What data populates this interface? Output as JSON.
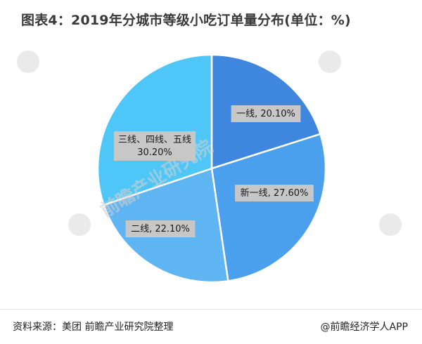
{
  "header": {
    "title": "图表4：2019年分城市等级小吃订单量分布(单位：%)"
  },
  "chart_data": {
    "type": "pie",
    "title": "图表4：2019年分城市等级小吃订单量分布(单位：%)",
    "unit": "%",
    "slices": [
      {
        "name": "一线",
        "value": 20.1,
        "label": "一线, 20.10%",
        "color": "#3f86de"
      },
      {
        "name": "新一线",
        "value": 27.6,
        "label": "新一线, 27.60%",
        "color": "#4aa0ec"
      },
      {
        "name": "二线",
        "value": 22.1,
        "label": "二线, 22.10%",
        "color": "#5fb4f2"
      },
      {
        "name": "三线、四线、五线",
        "value": 30.2,
        "label_lines": [
          "三线、四线、五线",
          "30.20%"
        ],
        "color": "#4fc6f8"
      }
    ]
  },
  "footer": {
    "source": "资料来源：美团 前瞻产业研究院整理",
    "brand": "@前瞻经济学人APP"
  },
  "watermark": {
    "text": "前瞻产业研究院"
  }
}
